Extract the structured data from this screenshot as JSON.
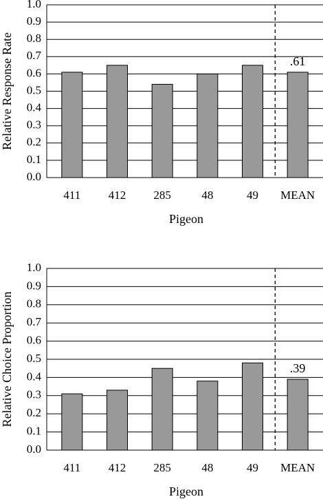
{
  "chart_data": [
    {
      "type": "bar",
      "categories": [
        "411",
        "412",
        "285",
        "48",
        "49",
        "MEAN"
      ],
      "values": [
        0.61,
        0.65,
        0.54,
        0.6,
        0.65,
        0.61
      ],
      "value_labels": [
        null,
        null,
        null,
        null,
        null,
        ".61"
      ],
      "color": "#999999",
      "xlabel": "Pigeon",
      "ylabel": "Relative Response Rate",
      "ylim": [
        0,
        1
      ],
      "yticks": [
        {
          "value": 0,
          "label": "0.0"
        },
        0.1,
        0.2,
        0.3,
        0.4,
        0.5,
        0.6,
        0.7,
        0.8,
        0.9,
        {
          "value": 1,
          "label": "1.0"
        }
      ],
      "grid": true
    },
    {
      "type": "bar",
      "categories": [
        "411",
        "412",
        "285",
        "48",
        "49",
        "MEAN"
      ],
      "values": [
        0.31,
        0.33,
        0.45,
        0.38,
        0.48,
        0.39
      ],
      "value_labels": [
        null,
        null,
        null,
        null,
        null,
        ".39"
      ],
      "color": "#999999",
      "xlabel": "Pigeon",
      "ylabel": "Relative Choice Proportion",
      "ylim": [
        0,
        1
      ],
      "yticks": [
        {
          "value": 0,
          "label": "0.0"
        },
        0.1,
        0.2,
        0.3,
        0.4,
        0.5,
        0.6,
        0.7,
        0.8,
        0.9,
        {
          "value": 1,
          "label": "1.0"
        }
      ],
      "grid": true
    }
  ]
}
